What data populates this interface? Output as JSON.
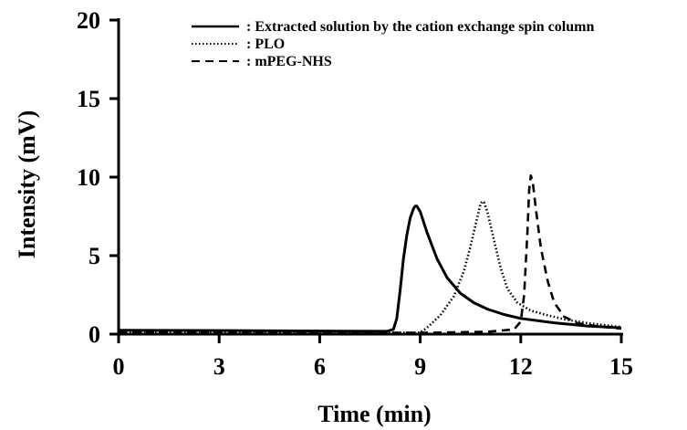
{
  "chart_data": {
    "type": "line",
    "xlabel": "Time (min)",
    "ylabel": "Intensity (mV)",
    "xlim": [
      0,
      15
    ],
    "ylim": [
      0,
      20
    ],
    "xticks": [
      "0",
      "3",
      "6",
      "9",
      "12",
      "15"
    ],
    "yticks": [
      "0",
      "5",
      "10",
      "15",
      "20"
    ],
    "grid": false,
    "legend_position": "top-right",
    "series": [
      {
        "name": ": Extracted solution by the cation exchange spin column",
        "line_style": "solid",
        "color": "#000000",
        "points": [
          [
            0,
            0.25
          ],
          [
            4,
            0.22
          ],
          [
            8,
            0.18
          ],
          [
            8.2,
            0.3
          ],
          [
            8.3,
            1.0
          ],
          [
            8.4,
            2.8
          ],
          [
            8.5,
            4.8
          ],
          [
            8.6,
            6.3
          ],
          [
            8.7,
            7.4
          ],
          [
            8.8,
            8.0
          ],
          [
            8.85,
            8.15
          ],
          [
            8.9,
            8.15
          ],
          [
            9.0,
            7.8
          ],
          [
            9.2,
            6.5
          ],
          [
            9.5,
            4.8
          ],
          [
            9.8,
            3.6
          ],
          [
            10.2,
            2.6
          ],
          [
            10.6,
            2.0
          ],
          [
            11.0,
            1.6
          ],
          [
            11.5,
            1.25
          ],
          [
            12.0,
            1.0
          ],
          [
            13.0,
            0.72
          ],
          [
            14.0,
            0.52
          ],
          [
            15,
            0.4
          ]
        ]
      },
      {
        "name": ": PLO",
        "line_style": "dotted",
        "color": "#000000",
        "points": [
          [
            0,
            0.15
          ],
          [
            8,
            0.1
          ],
          [
            9.0,
            0.1
          ],
          [
            9.2,
            0.4
          ],
          [
            9.6,
            1.2
          ],
          [
            10.0,
            2.4
          ],
          [
            10.3,
            4.0
          ],
          [
            10.5,
            5.6
          ],
          [
            10.7,
            7.4
          ],
          [
            10.8,
            8.3
          ],
          [
            10.85,
            8.45
          ],
          [
            10.9,
            8.4
          ],
          [
            11.0,
            7.8
          ],
          [
            11.2,
            6.0
          ],
          [
            11.4,
            4.2
          ],
          [
            11.6,
            2.9
          ],
          [
            11.9,
            2.0
          ],
          [
            12.3,
            1.5
          ],
          [
            12.8,
            1.2
          ],
          [
            13.3,
            0.95
          ],
          [
            14.0,
            0.7
          ],
          [
            15,
            0.45
          ]
        ]
      },
      {
        "name": ": mPEG-NHS",
        "line_style": "dashed",
        "color": "#000000",
        "points": [
          [
            0,
            0.1
          ],
          [
            9,
            0.08
          ],
          [
            11.0,
            0.15
          ],
          [
            11.8,
            0.3
          ],
          [
            12.0,
            0.8
          ],
          [
            12.1,
            2.5
          ],
          [
            12.2,
            6.5
          ],
          [
            12.25,
            9.2
          ],
          [
            12.3,
            10.1
          ],
          [
            12.35,
            9.8
          ],
          [
            12.45,
            8.0
          ],
          [
            12.6,
            5.5
          ],
          [
            12.8,
            3.4
          ],
          [
            13.0,
            2.0
          ],
          [
            13.3,
            1.1
          ],
          [
            13.7,
            0.7
          ],
          [
            14.3,
            0.5
          ],
          [
            15,
            0.35
          ]
        ]
      }
    ]
  }
}
